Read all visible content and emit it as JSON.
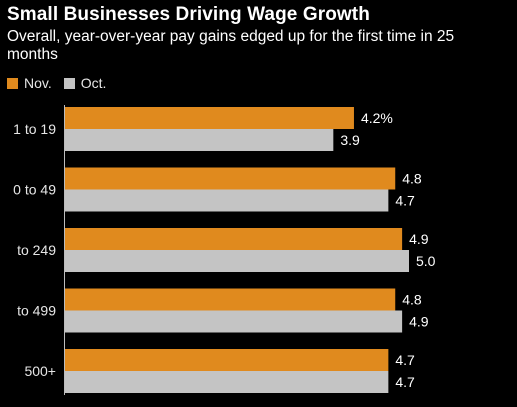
{
  "chart_data": {
    "type": "bar",
    "orientation": "horizontal",
    "title": "Small Businesses Driving Wage Growth",
    "subtitle": "Overall, year-over-year pay gains edged up for the first time in 25 months",
    "categories": [
      "1 to 19",
      "0 to 49",
      "to 249",
      "to 499",
      "500+"
    ],
    "series": [
      {
        "name": "Nov.",
        "color": "#e08a1e",
        "values": [
          4.2,
          4.8,
          4.9,
          4.8,
          4.7
        ],
        "labels": [
          "4.2%",
          "4.8",
          "4.9",
          "4.8",
          "4.7"
        ]
      },
      {
        "name": "Oct.",
        "color": "#c4c4c4",
        "values": [
          3.9,
          4.7,
          5.0,
          4.9,
          4.7
        ],
        "labels": [
          "3.9",
          "4.7",
          "5.0",
          "4.9",
          "4.7"
        ]
      }
    ],
    "xlim": [
      0,
      5.0
    ],
    "grid": false,
    "legend_position": "top-left"
  }
}
